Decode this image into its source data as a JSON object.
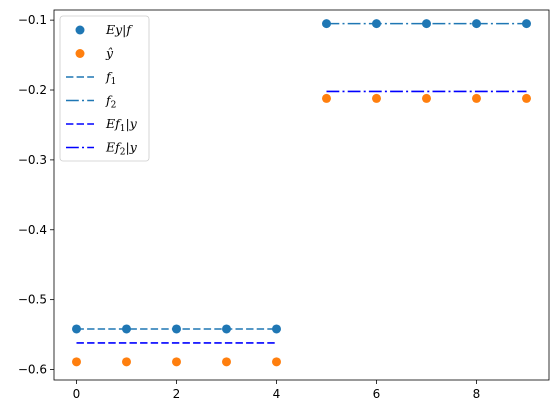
{
  "chart_data": {
    "type": "scatter",
    "xlim": [
      -0.45,
      9.45
    ],
    "ylim": [
      -0.615,
      -0.0855
    ],
    "xticks": [
      0,
      2,
      4,
      6,
      8
    ],
    "xtick_labels": [
      "0",
      "2",
      "4",
      "6",
      "8"
    ],
    "yticks": [
      -0.1,
      -0.2,
      -0.3,
      -0.4,
      -0.5,
      -0.6
    ],
    "ytick_labels": [
      "−0.1",
      "−0.2",
      "−0.3",
      "−0.4",
      "−0.5",
      "−0.6"
    ],
    "grid": false,
    "legend_position": "top-left",
    "series": [
      {
        "name": "Ey|f",
        "label_text": "Ey|f",
        "kind": "scatter",
        "color": "#1f77b4",
        "x": [
          0,
          1,
          2,
          3,
          4,
          5,
          6,
          7,
          8,
          9
        ],
        "y": [
          -0.542,
          -0.542,
          -0.542,
          -0.542,
          -0.542,
          -0.105,
          -0.105,
          -0.105,
          -0.105,
          -0.105
        ]
      },
      {
        "name": "ŷ",
        "label_text": "ŷ",
        "kind": "scatter",
        "color": "#ff7f0e",
        "x": [
          0,
          1,
          2,
          3,
          4,
          5,
          6,
          7,
          8,
          9
        ],
        "y": [
          -0.589,
          -0.589,
          -0.589,
          -0.589,
          -0.589,
          -0.212,
          -0.212,
          -0.212,
          -0.212,
          -0.212
        ]
      },
      {
        "name": "f_1",
        "label_text": "f",
        "label_sub": "1",
        "kind": "line",
        "dash": "dashed",
        "color": "#1f77b4",
        "x": [
          0,
          4
        ],
        "y": [
          -0.542,
          -0.542
        ]
      },
      {
        "name": "f_2",
        "label_text": "f",
        "label_sub": "2",
        "kind": "line",
        "dash": "dashdot",
        "color": "#1f77b4",
        "x": [
          5,
          9
        ],
        "y": [
          -0.105,
          -0.105
        ]
      },
      {
        "name": "Ef_1|y",
        "label_text": "Ef",
        "label_sub": "1",
        "label_tail": "|y",
        "kind": "line",
        "dash": "dashed",
        "color": "#0000ff",
        "x": [
          0,
          4
        ],
        "y": [
          -0.562,
          -0.562
        ]
      },
      {
        "name": "Ef_2|y",
        "label_text": "Ef",
        "label_sub": "2",
        "label_tail": "|y",
        "kind": "line",
        "dash": "dashdot",
        "color": "#0000ff",
        "x": [
          5,
          9
        ],
        "y": [
          -0.202,
          -0.202
        ]
      }
    ]
  }
}
